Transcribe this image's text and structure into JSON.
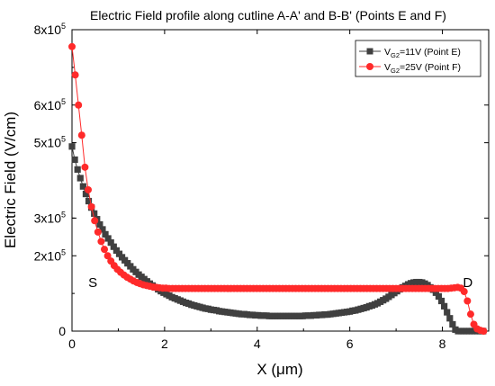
{
  "chart_data": {
    "type": "scatter",
    "title": "Electric Field profile along cutline A-A' and B-B' (Points E and F)",
    "xlabel": "X (μm)",
    "ylabel": "Electric Field (V/cm)",
    "xlim": [
      0,
      9
    ],
    "ylim": [
      0,
      800000
    ],
    "grid": false,
    "legend_position": "top-right",
    "x_ticks": [
      {
        "value": 0,
        "label": "0"
      },
      {
        "value": 2,
        "label": "2"
      },
      {
        "value": 4,
        "label": "4"
      },
      {
        "value": 6,
        "label": "6"
      },
      {
        "value": 8,
        "label": "8"
      }
    ],
    "y_ticks": [
      {
        "value": 0,
        "mant": "0",
        "exp": ""
      },
      {
        "value": 200000,
        "mant": "2x10",
        "exp": "5"
      },
      {
        "value": 300000,
        "mant": "3x10",
        "exp": "5"
      },
      {
        "value": 500000,
        "mant": "5x10",
        "exp": "5"
      },
      {
        "value": 600000,
        "mant": "6x10",
        "exp": "5"
      },
      {
        "value": 800000,
        "mant": "8x10",
        "exp": "5"
      }
    ],
    "annotations": [
      {
        "text": "S",
        "x": 0.45,
        "y": 110000
      },
      {
        "text": "D",
        "x": 8.55,
        "y": 110000
      }
    ],
    "series": [
      {
        "name": "V_G2=11V (Point E)",
        "legend_main": "V",
        "legend_sub": "G2",
        "legend_rest": "=11V (Point E)",
        "color": "#404040",
        "marker": "square",
        "x": [
          0.0,
          0.06,
          0.12,
          0.18,
          0.24,
          0.3,
          0.36,
          0.42,
          0.48,
          0.54,
          0.6,
          0.66,
          0.72,
          0.78,
          0.84,
          0.9,
          0.96,
          1.02,
          1.08,
          1.14,
          1.2,
          1.26,
          1.32,
          1.38,
          1.44,
          1.5,
          1.56,
          1.62,
          1.68,
          1.74,
          1.8,
          1.86,
          1.92,
          1.98,
          2.04,
          2.1,
          2.16,
          2.22,
          2.28,
          2.34,
          2.4,
          2.46,
          2.52,
          2.58,
          2.64,
          2.7,
          2.76,
          2.82,
          2.88,
          2.94,
          3.0,
          3.06,
          3.12,
          3.18,
          3.24,
          3.3,
          3.36,
          3.42,
          3.48,
          3.54,
          3.6,
          3.66,
          3.72,
          3.78,
          3.84,
          3.9,
          3.96,
          4.02,
          4.08,
          4.14,
          4.2,
          4.26,
          4.32,
          4.38,
          4.44,
          4.5,
          4.56,
          4.62,
          4.68,
          4.74,
          4.8,
          4.86,
          4.92,
          4.98,
          5.04,
          5.1,
          5.16,
          5.22,
          5.28,
          5.34,
          5.4,
          5.46,
          5.52,
          5.58,
          5.64,
          5.7,
          5.76,
          5.82,
          5.88,
          5.94,
          6.0,
          6.06,
          6.12,
          6.18,
          6.24,
          6.3,
          6.36,
          6.42,
          6.48,
          6.54,
          6.6,
          6.66,
          6.72,
          6.78,
          6.84,
          6.9,
          6.96,
          7.02,
          7.08,
          7.14,
          7.2,
          7.26,
          7.32,
          7.38,
          7.44,
          7.5,
          7.56,
          7.62,
          7.68,
          7.74,
          7.8,
          7.86,
          7.92,
          7.98,
          8.04,
          8.1,
          8.16,
          8.22,
          8.28,
          8.34,
          8.4,
          8.46,
          8.52,
          8.58,
          8.64,
          8.7,
          8.76,
          8.82,
          8.88
        ],
        "y": [
          490000,
          455000,
          429000,
          406000,
          384000,
          364000,
          345000,
          328000,
          312000,
          297000,
          283000,
          270000,
          257000,
          246000,
          235000,
          224000,
          214000,
          205000,
          196000,
          188000,
          180000,
          172000,
          164000,
          157000,
          150000,
          144000,
          138000,
          132000,
          126000,
          121000,
          116000,
          111000,
          106000,
          102000,
          98000,
          94000,
          90000,
          87000,
          84000,
          81000,
          78000,
          75000,
          73000,
          70000,
          68000,
          66000,
          64000,
          62000,
          60000,
          59000,
          57000,
          56000,
          55000,
          53000,
          52000,
          51000,
          50000,
          49000,
          48000,
          47000,
          46000,
          45000,
          45000,
          44000,
          43000,
          43000,
          42000,
          42000,
          41000,
          41000,
          41000,
          40000,
          40000,
          40000,
          40000,
          40000,
          40000,
          40000,
          40000,
          40000,
          40000,
          40000,
          40000,
          40000,
          41000,
          41000,
          41000,
          42000,
          42000,
          43000,
          43000,
          44000,
          44000,
          45000,
          46000,
          47000,
          48000,
          49000,
          50000,
          51000,
          52000,
          54000,
          55000,
          57000,
          59000,
          61000,
          63000,
          66000,
          68000,
          71000,
          74000,
          78000,
          82000,
          86000,
          91000,
          96000,
          101000,
          106000,
          111000,
          116000,
          120000,
          124000,
          127000,
          129000,
          130000,
          130000,
          129000,
          126000,
          122000,
          116000,
          110000,
          102000,
          92000,
          80000,
          66000,
          50000,
          34000,
          18000,
          4000,
          0,
          0,
          0,
          0,
          0,
          0,
          0,
          0,
          0,
          0
        ]
      },
      {
        "name": "V_G2=25V (Point F)",
        "legend_main": "V",
        "legend_sub": "G2",
        "legend_rest": "=25V (Point F)",
        "color": "#ff2a2a",
        "marker": "circle",
        "x": [
          0.0,
          0.07,
          0.14,
          0.21,
          0.28,
          0.35,
          0.42,
          0.49,
          0.56,
          0.63,
          0.7,
          0.77,
          0.84,
          0.91,
          0.98,
          1.05,
          1.12,
          1.19,
          1.26,
          1.33,
          1.4,
          1.47,
          1.54,
          1.61,
          1.68,
          1.75,
          1.82,
          1.89,
          1.96,
          2.03,
          2.1,
          2.17,
          2.24,
          2.31,
          2.38,
          2.45,
          2.52,
          2.59,
          2.66,
          2.73,
          2.8,
          2.87,
          2.94,
          3.01,
          3.08,
          3.15,
          3.22,
          3.29,
          3.36,
          3.43,
          3.5,
          3.57,
          3.64,
          3.71,
          3.78,
          3.85,
          3.92,
          3.99,
          4.06,
          4.13,
          4.2,
          4.27,
          4.34,
          4.41,
          4.48,
          4.55,
          4.62,
          4.69,
          4.76,
          4.83,
          4.9,
          4.97,
          5.04,
          5.11,
          5.18,
          5.25,
          5.32,
          5.39,
          5.46,
          5.53,
          5.6,
          5.67,
          5.74,
          5.81,
          5.88,
          5.95,
          6.02,
          6.09,
          6.16,
          6.23,
          6.3,
          6.37,
          6.44,
          6.51,
          6.58,
          6.65,
          6.72,
          6.79,
          6.86,
          6.93,
          7.0,
          7.07,
          7.14,
          7.21,
          7.28,
          7.35,
          7.42,
          7.49,
          7.56,
          7.63,
          7.7,
          7.77,
          7.84,
          7.91,
          7.98,
          8.05,
          8.12,
          8.19,
          8.26,
          8.33,
          8.4,
          8.47,
          8.54,
          8.61,
          8.68,
          8.75,
          8.82,
          8.89
        ],
        "y": [
          755000,
          680000,
          600000,
          520000,
          435000,
          375000,
          330000,
          293000,
          263000,
          238000,
          217000,
          200000,
          186000,
          174000,
          164000,
          156000,
          149000,
          143000,
          138000,
          133000,
          129000,
          126000,
          123000,
          121000,
          119000,
          117000,
          116000,
          115000,
          114000,
          114000,
          113000,
          113000,
          113000,
          113000,
          113000,
          113000,
          113000,
          113000,
          113000,
          113000,
          113000,
          113000,
          113000,
          113000,
          113000,
          113000,
          113000,
          113000,
          113000,
          113000,
          113000,
          113000,
          113000,
          113000,
          113000,
          113000,
          113000,
          113000,
          113000,
          113000,
          113000,
          113000,
          113000,
          113000,
          113000,
          113000,
          113000,
          113000,
          113000,
          113000,
          113000,
          113000,
          113000,
          113000,
          113000,
          113000,
          113000,
          113000,
          113000,
          113000,
          113000,
          113000,
          113000,
          113000,
          113000,
          113000,
          113000,
          113000,
          113000,
          113000,
          113000,
          113000,
          113000,
          113000,
          113000,
          113000,
          113000,
          113000,
          113000,
          113000,
          113000,
          113000,
          113000,
          113000,
          113000,
          113000,
          113000,
          113000,
          113000,
          113000,
          113000,
          113000,
          113000,
          113000,
          113000,
          113000,
          113000,
          114000,
          115000,
          116000,
          114000,
          105000,
          80000,
          45000,
          18000,
          6000,
          2000,
          0
        ]
      }
    ]
  }
}
